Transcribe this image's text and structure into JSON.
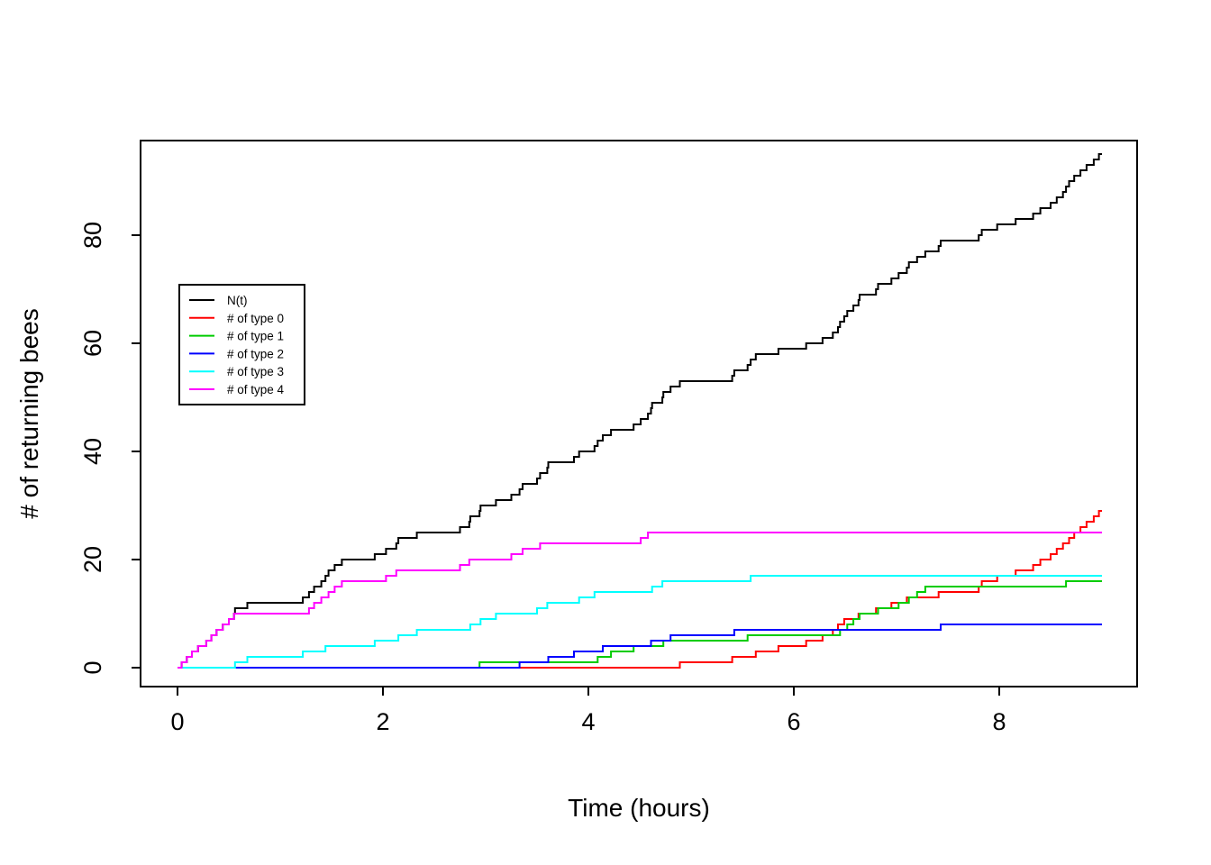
{
  "chart_data": {
    "type": "line",
    "subtype": "step-counting-process",
    "title": "",
    "xlabel": "Time (hours)",
    "ylabel": "# of returning bees",
    "xlim": [
      0,
      9.35
    ],
    "ylim": [
      0,
      97
    ],
    "x_ticks": [
      0,
      2,
      4,
      6,
      8
    ],
    "y_ticks": [
      0,
      20,
      40,
      60,
      80
    ],
    "grid": "off",
    "legend_position": "upper-left-inside",
    "t_start": 0,
    "t_end": 9.0,
    "series": [
      {
        "name": "N(t)",
        "color": "#000000",
        "final_count": 95,
        "jump_times": [
          0.04,
          0.09,
          0.14,
          0.2,
          0.28,
          0.33,
          0.38,
          0.44,
          0.5,
          0.55,
          0.56,
          0.68,
          1.22,
          1.28,
          1.33,
          1.4,
          1.44,
          1.47,
          1.53,
          1.6,
          1.92,
          2.03,
          2.13,
          2.15,
          2.33,
          2.75,
          2.84,
          2.85,
          2.94,
          2.95,
          3.1,
          3.25,
          3.33,
          3.36,
          3.5,
          3.53,
          3.6,
          3.61,
          3.86,
          3.91,
          4.06,
          4.09,
          4.14,
          4.22,
          4.44,
          4.51,
          4.58,
          4.61,
          4.62,
          4.72,
          4.73,
          4.8,
          4.89,
          5.4,
          5.42,
          5.55,
          5.58,
          5.63,
          5.85,
          6.12,
          6.28,
          6.38,
          6.43,
          6.45,
          6.49,
          6.52,
          6.58,
          6.63,
          6.64,
          6.8,
          6.82,
          6.95,
          7.02,
          7.1,
          7.12,
          7.2,
          7.28,
          7.41,
          7.43,
          7.8,
          7.83,
          7.98,
          8.16,
          8.33,
          8.4,
          8.5,
          8.56,
          8.62,
          8.65,
          8.68,
          8.73,
          8.79,
          8.85,
          8.92,
          8.97
        ]
      },
      {
        "name": "# of type 0",
        "color": "#FF0000",
        "final_count": 29,
        "jump_times": [
          4.89,
          5.4,
          5.63,
          5.85,
          6.12,
          6.28,
          6.38,
          6.43,
          6.49,
          6.63,
          6.8,
          6.95,
          7.1,
          7.41,
          7.8,
          7.83,
          7.98,
          8.16,
          8.33,
          8.4,
          8.5,
          8.56,
          8.62,
          8.68,
          8.73,
          8.79,
          8.85,
          8.92,
          8.97
        ]
      },
      {
        "name": "# of type 1",
        "color": "#00CC00",
        "final_count": 16,
        "jump_times": [
          2.94,
          4.09,
          4.22,
          4.44,
          4.73,
          5.55,
          6.45,
          6.52,
          6.58,
          6.64,
          6.82,
          7.02,
          7.12,
          7.2,
          7.28,
          8.65
        ]
      },
      {
        "name": "# of type 2",
        "color": "#0000FF",
        "final_count": 8,
        "jump_times": [
          3.33,
          3.61,
          3.86,
          4.14,
          4.61,
          4.8,
          5.42,
          7.43
        ]
      },
      {
        "name": "# of type 3",
        "color": "#00FFFF",
        "final_count": 17,
        "jump_times": [
          0.56,
          0.68,
          1.22,
          1.44,
          1.92,
          2.15,
          2.33,
          2.85,
          2.95,
          3.1,
          3.5,
          3.6,
          3.91,
          4.06,
          4.62,
          4.72,
          5.58
        ]
      },
      {
        "name": "# of type 4",
        "color": "#FF00FF",
        "final_count": 25,
        "jump_times": [
          0.04,
          0.09,
          0.14,
          0.2,
          0.28,
          0.33,
          0.38,
          0.44,
          0.5,
          0.55,
          1.28,
          1.33,
          1.4,
          1.47,
          1.53,
          1.6,
          2.03,
          2.13,
          2.75,
          2.84,
          3.25,
          3.36,
          3.53,
          4.51,
          4.58
        ]
      }
    ]
  }
}
